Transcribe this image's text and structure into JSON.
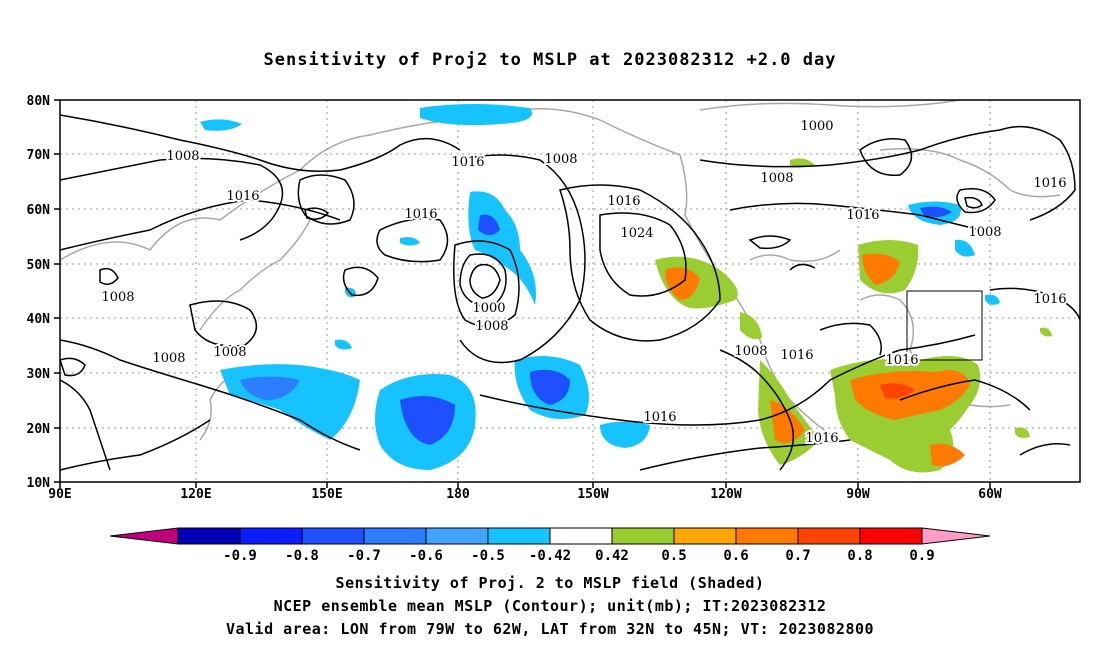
{
  "title": "Sensitivity of Proj2 to MSLP at 2023082312 +2.0 day",
  "lat_labels": [
    "80N",
    "70N",
    "60N",
    "50N",
    "40N",
    "30N",
    "20N",
    "10N"
  ],
  "lon_labels": [
    "90E",
    "120E",
    "150E",
    "180",
    "150W",
    "120W",
    "90W",
    "60W"
  ],
  "contour_labels": [
    "1008",
    "1016",
    "1008",
    "1016",
    "1000",
    "1016",
    "1008",
    "1016",
    "1016",
    "1024",
    "1000",
    "1008",
    "1008",
    "1016",
    "1008",
    "1008",
    "1016",
    "1016",
    "1016",
    "1016",
    "1016",
    "1008",
    "1016",
    "1008",
    "1016"
  ],
  "colorbar": {
    "labels": [
      "-0.9",
      "-0.8",
      "-0.7",
      "-0.6",
      "-0.5",
      "-0.42",
      "0.42",
      "0.5",
      "0.6",
      "0.7",
      "0.8",
      "0.9"
    ],
    "colors": [
      "#c0007a",
      "#0000b4",
      "#0a1eff",
      "#1e50ff",
      "#2c7dff",
      "#42a4ff",
      "#17c3ff",
      "#ffffff",
      "#9acd32",
      "#ffa500",
      "#ff7a00",
      "#ff4400",
      "#ff0000",
      "#ff9cc8"
    ]
  },
  "captions": [
    "Sensitivity of Proj. 2 to MSLP field (Shaded)",
    "NCEP ensemble mean MSLP (Contour); unit(mb); IT:2023082312",
    "Valid area: LON from 79W to 62W, LAT from 32N to 45N; VT: 2023082800"
  ]
}
